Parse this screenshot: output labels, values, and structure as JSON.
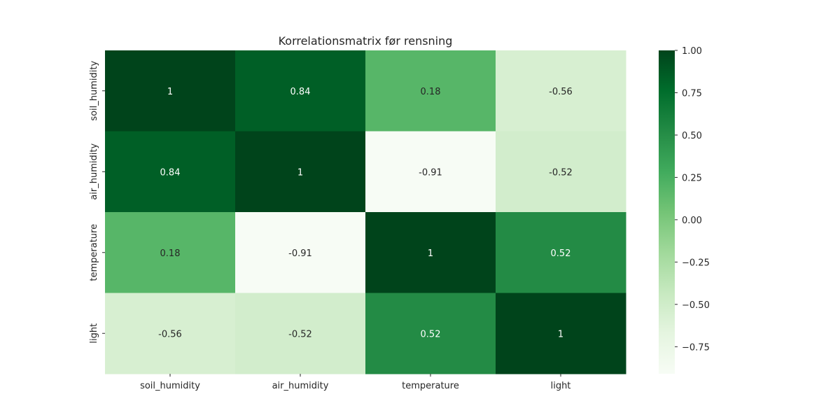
{
  "chart_data": {
    "type": "heatmap",
    "title": "Korrelationsmatrix før rensning",
    "x_labels": [
      "soil_humidity",
      "air_humidity",
      "temperature",
      "light"
    ],
    "y_labels": [
      "soil_humidity",
      "air_humidity",
      "temperature",
      "light"
    ],
    "values": [
      [
        1,
        0.84,
        0.18,
        -0.56
      ],
      [
        0.84,
        1,
        -0.91,
        -0.52
      ],
      [
        0.18,
        -0.91,
        1,
        0.52
      ],
      [
        -0.56,
        -0.52,
        0.52,
        1
      ]
    ],
    "cell_text": [
      [
        "1",
        "0.84",
        "0.18",
        "-0.56"
      ],
      [
        "0.84",
        "1",
        "-0.91",
        "-0.52"
      ],
      [
        "0.18",
        "-0.91",
        "1",
        "0.52"
      ],
      [
        "-0.56",
        "-0.52",
        "0.52",
        "1"
      ]
    ],
    "colormap": "Greens",
    "colormap_stops": [
      "#f7fcf5",
      "#e5f5e0",
      "#c7e9c0",
      "#a1d99b",
      "#74c476",
      "#41ab5d",
      "#238b45",
      "#006d2c",
      "#00441b"
    ],
    "vmin": -0.91,
    "vmax": 1.0,
    "colorbar": {
      "ticks": [
        1.0,
        0.75,
        0.5,
        0.25,
        0.0,
        -0.25,
        -0.5,
        -0.75
      ],
      "tick_labels": [
        "1.00",
        "0.75",
        "0.50",
        "0.25",
        "0.00",
        "−0.25",
        "−0.50",
        "−0.75"
      ]
    }
  }
}
